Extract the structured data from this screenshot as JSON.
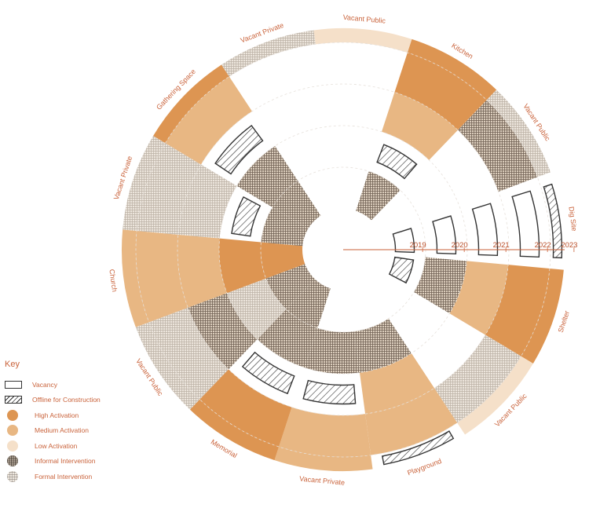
{
  "segments": [
    {
      "label": "Church",
      "uses": [
        "high",
        "high",
        "medium",
        "medium",
        "medium"
      ]
    },
    {
      "label": "Vacant Private",
      "uses": [
        "informal",
        "offline",
        "formal",
        "formal",
        "formal"
      ]
    },
    {
      "label": "Gathering Space",
      "uses": [
        "informal",
        "informal",
        "offline",
        "medium",
        "high"
      ]
    },
    {
      "label": "Vacant Private",
      "uses": [
        "empty",
        "empty",
        "empty",
        "empty",
        "formal"
      ]
    },
    {
      "label": "Vacant Public",
      "uses": [
        "empty",
        "empty",
        "empty",
        "empty",
        "low"
      ]
    },
    {
      "label": "Kitchen",
      "uses": [
        "informal",
        "offline",
        "medium",
        "high",
        "high"
      ]
    },
    {
      "label": "Vacant Public",
      "uses": [
        "empty",
        "empty",
        "empty",
        "informal",
        "formal"
      ]
    },
    {
      "label": "Dig Site",
      "uses": [
        "vacancy",
        "vacancy",
        "vacancy",
        "vacancy",
        "offline"
      ]
    },
    {
      "label": "Shelter",
      "uses": [
        "offline",
        "informal",
        "medium",
        "high",
        "high"
      ]
    },
    {
      "label": "Vacant Public",
      "uses": [
        "empty",
        "empty",
        "empty",
        "formal",
        "low"
      ]
    },
    {
      "label": "Playground",
      "uses": [
        "empty",
        "informal",
        "medium",
        "medium",
        "offline"
      ]
    },
    {
      "label": "Vacant Private",
      "uses": [
        "empty",
        "informal",
        "offline",
        "medium",
        "medium"
      ]
    },
    {
      "label": "Memorial",
      "uses": [
        "informal",
        "informal",
        "offline",
        "high",
        "high"
      ]
    },
    {
      "label": "Vacant Public",
      "uses": [
        "informal",
        "formal",
        "informal",
        "formal",
        "formal"
      ]
    }
  ],
  "years": [
    "2019",
    "2020",
    "2021",
    "2022",
    "2023"
  ],
  "colors": {
    "high": "#dd9552",
    "medium": "#e8b783",
    "low": "#f5e0c9",
    "informal_base": "#dbcdbc",
    "formal_base": "#ece5dc",
    "accent": "#c9623a",
    "outline": "#333333"
  },
  "key": {
    "title": "Key",
    "items": [
      {
        "label": "Vacancy",
        "icon": "vacancy-swatch"
      },
      {
        "label": "Offline for Construction",
        "icon": "hatched-swatch"
      },
      {
        "label": "High Activation",
        "icon": "dark-orange-dot"
      },
      {
        "label": "Medium Activation",
        "icon": "medium-orange-dot"
      },
      {
        "label": "Low Activation",
        "icon": "light-orange-dot"
      },
      {
        "label": "Informal Intervention",
        "icon": "dense-texture-dot"
      },
      {
        "label": "Formal Intervention",
        "icon": "light-texture-dot"
      }
    ]
  }
}
